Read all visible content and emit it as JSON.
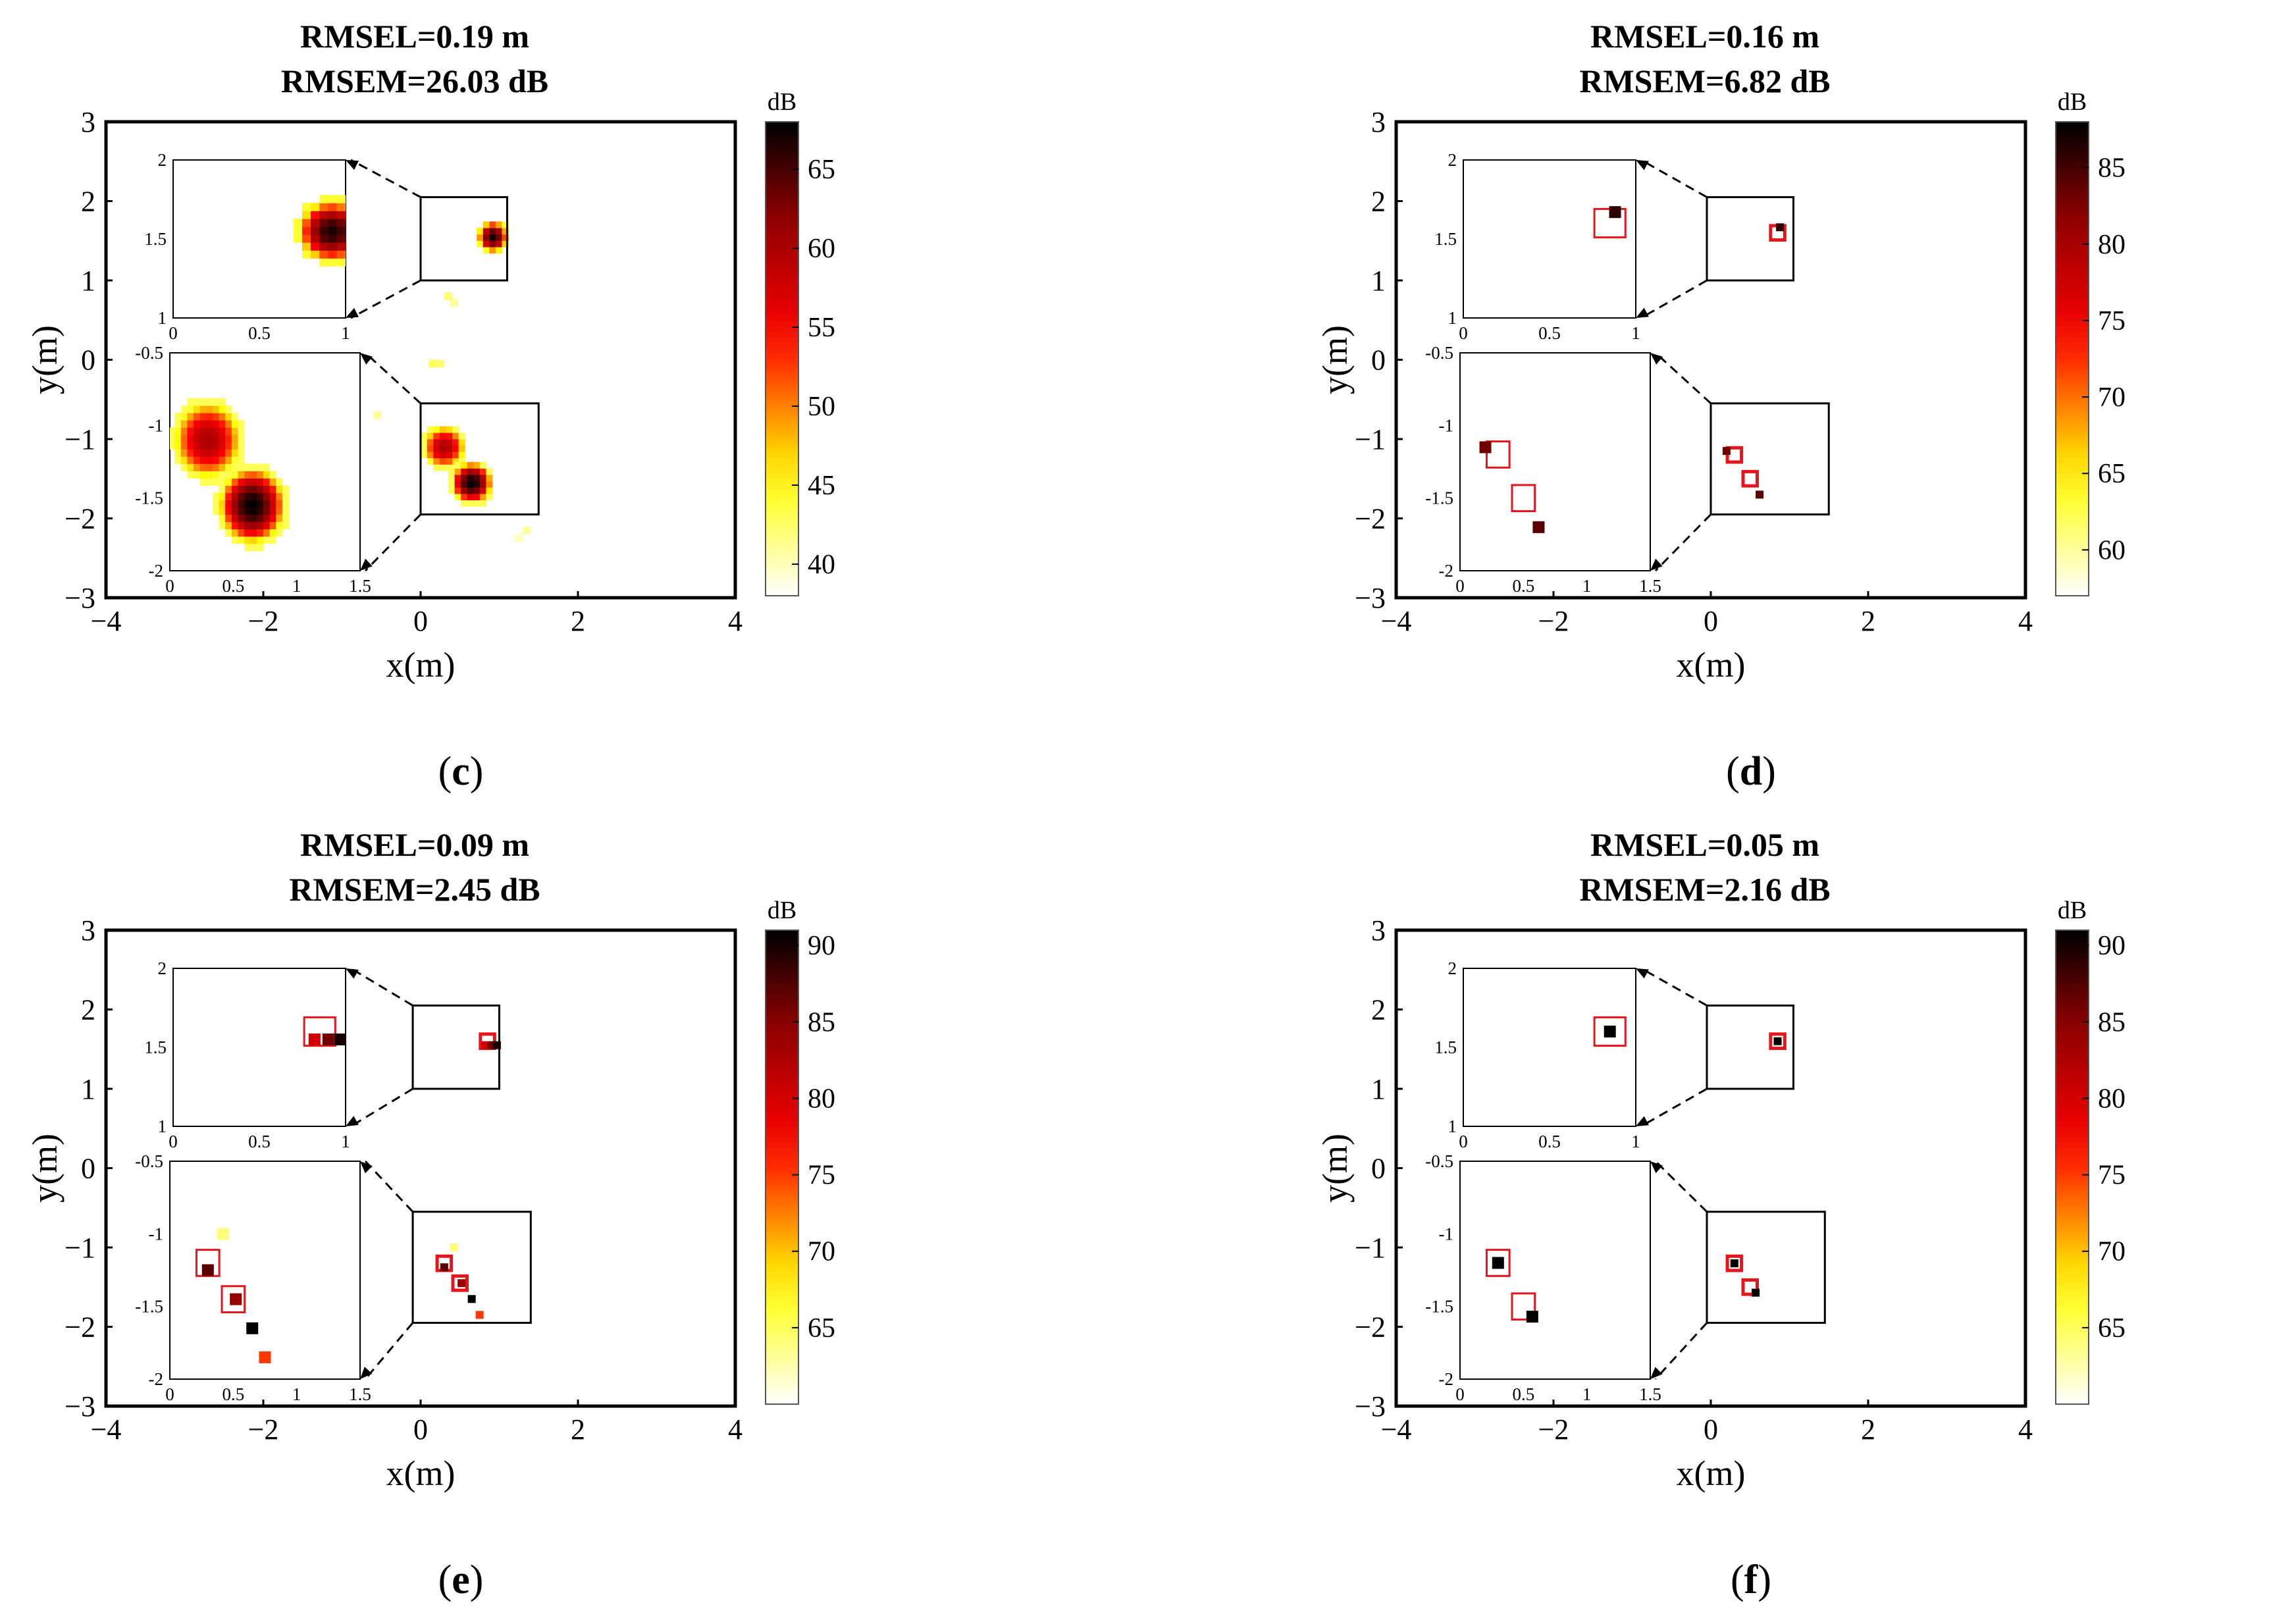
{
  "chart_data": [
    {
      "id": "c",
      "type": "heatmap",
      "panel_label": "(c)",
      "title_line1": "RMSEL=0.19 m",
      "title_line2": "RMSEM=26.03 dB",
      "xlabel": "x(m)",
      "ylabel": "y(m)",
      "xlim": [
        -4,
        4
      ],
      "ylim": [
        -3,
        3
      ],
      "xticks": [
        -4,
        -2,
        0,
        2,
        4
      ],
      "yticks": [
        -3,
        -2,
        -1,
        0,
        1,
        2,
        3
      ],
      "colorbar": {
        "unit": "dB",
        "min": 38,
        "max": 68,
        "ticks": [
          40,
          45,
          50,
          55,
          60,
          65
        ]
      },
      "zoom_boxes": [
        {
          "region": {
            "x": [
              0,
              1.1
            ],
            "y": [
              1.0,
              2.05
            ]
          },
          "inset": {
            "xlim": [
              0,
              1
            ],
            "ylim": [
              1,
              2
            ],
            "xticks": [
              0,
              0.5,
              1
            ],
            "yticks": [
              1,
              1.5,
              2
            ]
          }
        },
        {
          "region": {
            "x": [
              0,
              1.5
            ],
            "y": [
              -1.95,
              -0.55
            ]
          },
          "inset": {
            "xlim": [
              0,
              1.5
            ],
            "ylim": [
              -2,
              -0.5
            ],
            "xticks": [
              0,
              0.5,
              1,
              1.5
            ],
            "yticks": [
              -2,
              -1.5,
              -1,
              -0.5
            ]
          }
        }
      ],
      "blobs": [
        {
          "x": 0.92,
          "y": 1.55,
          "r": 0.19,
          "peak": 67,
          "floor": 44
        },
        {
          "x": 0.3,
          "y": -1.1,
          "r": 0.26,
          "peak": 60,
          "floor": 43
        },
        {
          "x": 0.65,
          "y": -1.55,
          "r": 0.26,
          "peak": 68,
          "floor": 43
        }
      ],
      "speckles": [
        {
          "x": 0.35,
          "y": 0.8,
          "v": 42
        },
        {
          "x": 0.42,
          "y": 0.72,
          "v": 41
        },
        {
          "x": 0.15,
          "y": -0.05,
          "v": 43
        },
        {
          "x": 0.25,
          "y": -0.05,
          "v": 42
        },
        {
          "x": -0.55,
          "y": -0.7,
          "v": 41
        },
        {
          "x": 1.35,
          "y": -2.15,
          "v": 41
        },
        {
          "x": 1.25,
          "y": -2.25,
          "v": 40
        }
      ],
      "markers": [],
      "dots": []
    },
    {
      "id": "d",
      "type": "heatmap",
      "panel_label": "(d)",
      "title_line1": "RMSEL=0.16 m",
      "title_line2": "RMSEM=6.82 dB",
      "xlabel": "x(m)",
      "ylabel": "y(m)",
      "xlim": [
        -4,
        4
      ],
      "ylim": [
        -3,
        3
      ],
      "xticks": [
        -4,
        -2,
        0,
        2,
        4
      ],
      "yticks": [
        -3,
        -2,
        -1,
        0,
        1,
        2,
        3
      ],
      "colorbar": {
        "unit": "dB",
        "min": 57,
        "max": 88,
        "ticks": [
          60,
          65,
          70,
          75,
          80,
          85
        ]
      },
      "zoom_boxes": [
        {
          "region": {
            "x": [
              -0.05,
              1.05
            ],
            "y": [
              1.0,
              2.05
            ]
          },
          "inset": {
            "xlim": [
              0,
              1
            ],
            "ylim": [
              1,
              2
            ],
            "xticks": [
              0,
              0.5,
              1
            ],
            "yticks": [
              1,
              1.5,
              2
            ]
          }
        },
        {
          "region": {
            "x": [
              0,
              1.5
            ],
            "y": [
              -1.95,
              -0.55
            ]
          },
          "inset": {
            "xlim": [
              0,
              1.5
            ],
            "ylim": [
              -2,
              -0.5
            ],
            "xticks": [
              0,
              0.5,
              1,
              1.5
            ],
            "yticks": [
              -2,
              -1.5,
              -1,
              -0.5
            ]
          }
        }
      ],
      "blobs": [],
      "speckles": [],
      "markers": [
        {
          "x": 0.85,
          "y": 1.6,
          "size": 0.18
        },
        {
          "x": 0.3,
          "y": -1.2,
          "size": 0.18
        },
        {
          "x": 0.5,
          "y": -1.5,
          "size": 0.18
        }
      ],
      "dots": [
        {
          "x": 0.88,
          "y": 1.67,
          "v": 86
        },
        {
          "x": 0.2,
          "y": -1.15,
          "v": 83
        },
        {
          "x": 0.62,
          "y": -1.7,
          "v": 84
        }
      ]
    },
    {
      "id": "e",
      "type": "heatmap",
      "panel_label": "(e)",
      "title_line1": "RMSEL=0.09 m",
      "title_line2": "RMSEM=2.45 dB",
      "xlabel": "x(m)",
      "ylabel": "y(m)",
      "xlim": [
        -4,
        4
      ],
      "ylim": [
        -3,
        3
      ],
      "xticks": [
        -4,
        -2,
        0,
        2,
        4
      ],
      "yticks": [
        -3,
        -2,
        -1,
        0,
        1,
        2,
        3
      ],
      "colorbar": {
        "unit": "dB",
        "min": 60,
        "max": 91,
        "ticks": [
          65,
          70,
          75,
          80,
          85,
          90
        ]
      },
      "zoom_boxes": [
        {
          "region": {
            "x": [
              -0.1,
              1.0
            ],
            "y": [
              1.0,
              2.05
            ]
          },
          "inset": {
            "xlim": [
              0,
              1
            ],
            "ylim": [
              1,
              2
            ],
            "xticks": [
              0,
              0.5,
              1
            ],
            "yticks": [
              1,
              1.5,
              2
            ]
          }
        },
        {
          "region": {
            "x": [
              -0.1,
              1.4
            ],
            "y": [
              -1.95,
              -0.55
            ]
          },
          "inset": {
            "xlim": [
              0,
              1.5
            ],
            "ylim": [
              -2,
              -0.5
            ],
            "xticks": [
              0,
              0.5,
              1,
              1.5
            ],
            "yticks": [
              -2,
              -1.5,
              -1,
              -0.5
            ]
          }
        }
      ],
      "blobs": [],
      "speckles": [],
      "markers": [
        {
          "x": 0.85,
          "y": 1.6,
          "size": 0.18
        },
        {
          "x": 0.3,
          "y": -1.2,
          "size": 0.18
        },
        {
          "x": 0.5,
          "y": -1.45,
          "size": 0.18
        }
      ],
      "dots": [
        {
          "x": 0.82,
          "y": 1.55,
          "v": 80
        },
        {
          "x": 0.9,
          "y": 1.55,
          "v": 86
        },
        {
          "x": 0.97,
          "y": 1.55,
          "v": 90
        },
        {
          "x": 0.42,
          "y": -1.0,
          "v": 64
        },
        {
          "x": 0.3,
          "y": -1.25,
          "v": 87
        },
        {
          "x": 0.52,
          "y": -1.45,
          "v": 84
        },
        {
          "x": 0.65,
          "y": -1.65,
          "v": 91
        },
        {
          "x": 0.75,
          "y": -1.85,
          "v": 75
        }
      ]
    },
    {
      "id": "f",
      "type": "heatmap",
      "panel_label": "(f)",
      "title_line1": "RMSEL=0.05 m",
      "title_line2": "RMSEM=2.16 dB",
      "xlabel": "x(m)",
      "ylabel": "y(m)",
      "xlim": [
        -4,
        4
      ],
      "ylim": [
        -3,
        3
      ],
      "xticks": [
        -4,
        -2,
        0,
        2,
        4
      ],
      "yticks": [
        -3,
        -2,
        -1,
        0,
        1,
        2,
        3
      ],
      "colorbar": {
        "unit": "dB",
        "min": 60,
        "max": 91,
        "ticks": [
          65,
          70,
          75,
          80,
          85,
          90
        ]
      },
      "zoom_boxes": [
        {
          "region": {
            "x": [
              -0.05,
              1.05
            ],
            "y": [
              1.0,
              2.05
            ]
          },
          "inset": {
            "xlim": [
              0,
              1
            ],
            "ylim": [
              1,
              2
            ],
            "xticks": [
              0,
              0.5,
              1
            ],
            "yticks": [
              1,
              1.5,
              2
            ]
          }
        },
        {
          "region": {
            "x": [
              -0.05,
              1.45
            ],
            "y": [
              -1.95,
              -0.55
            ]
          },
          "inset": {
            "xlim": [
              0,
              1.5
            ],
            "ylim": [
              -2,
              -0.5
            ],
            "xticks": [
              0,
              0.5,
              1,
              1.5
            ],
            "yticks": [
              -2,
              -1.5,
              -1,
              -0.5
            ]
          }
        }
      ],
      "blobs": [],
      "speckles": [],
      "markers": [
        {
          "x": 0.85,
          "y": 1.6,
          "size": 0.18
        },
        {
          "x": 0.3,
          "y": -1.2,
          "size": 0.18
        },
        {
          "x": 0.5,
          "y": -1.5,
          "size": 0.18
        }
      ],
      "dots": [
        {
          "x": 0.85,
          "y": 1.6,
          "v": 91
        },
        {
          "x": 0.3,
          "y": -1.2,
          "v": 91
        },
        {
          "x": 0.57,
          "y": -1.57,
          "v": 91
        }
      ]
    }
  ]
}
